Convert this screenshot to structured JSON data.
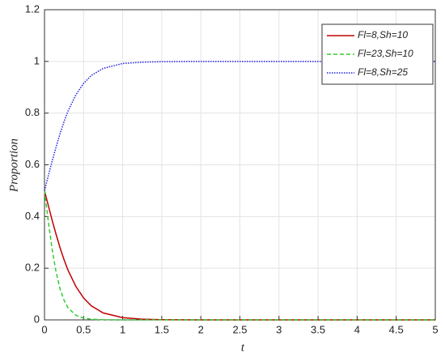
{
  "chart_data": {
    "type": "line",
    "xlabel": "t",
    "ylabel": "Proportion",
    "x": [
      0,
      0.05,
      0.1,
      0.15,
      0.2,
      0.25,
      0.3,
      0.4,
      0.5,
      0.6,
      0.75,
      1,
      1.25,
      1.5,
      2,
      2.5,
      3,
      3.5,
      4,
      4.5,
      5
    ],
    "series": [
      {
        "name": "Fl=8,Sh=10",
        "color": "#c00000",
        "dash": "solid",
        "values": [
          0.5,
          0.441,
          0.383,
          0.329,
          0.278,
          0.233,
          0.193,
          0.13,
          0.085,
          0.054,
          0.027,
          0.0085,
          0.0026,
          0.0008,
          0,
          0,
          0,
          0,
          0,
          0,
          0
        ]
      },
      {
        "name": "Fl=23,Sh=10",
        "color": "#33cc33",
        "dash": "dashed",
        "values": [
          0.5,
          0.378,
          0.269,
          0.182,
          0.119,
          0.076,
          0.047,
          0.018,
          0.0067,
          0.0025,
          0.0006,
          0,
          0,
          0,
          0,
          0,
          0,
          0,
          0,
          0,
          0
        ]
      },
      {
        "name": "Fl=8,Sh=25",
        "color": "#2020e0",
        "dash": "dotted",
        "values": [
          0.5,
          0.559,
          0.617,
          0.671,
          0.722,
          0.767,
          0.807,
          0.87,
          0.915,
          0.946,
          0.973,
          0.992,
          0.997,
          0.999,
          1,
          1,
          1,
          1,
          1,
          1,
          1
        ]
      }
    ],
    "xlim": [
      0,
      5
    ],
    "xticks": [
      0,
      0.5,
      1,
      1.5,
      2,
      2.5,
      3,
      3.5,
      4,
      4.5,
      5
    ],
    "ylim": [
      0,
      1.2
    ],
    "yticks": [
      0,
      0.2,
      0.4,
      0.6,
      0.8,
      1,
      1.2
    ],
    "grid": true,
    "legend": "upper-right"
  }
}
